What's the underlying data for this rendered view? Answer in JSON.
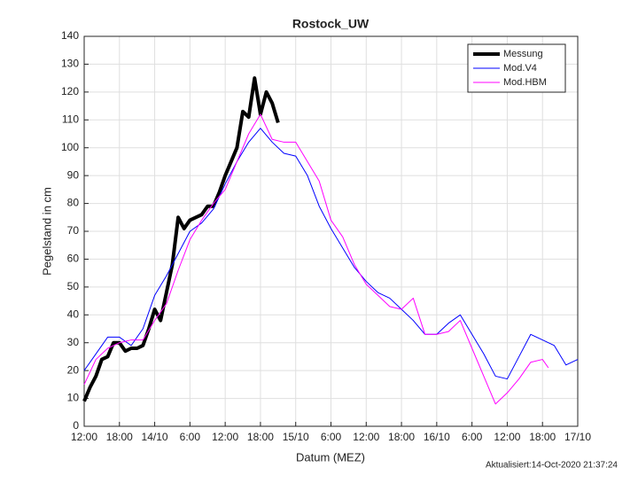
{
  "chart_data": {
    "type": "line",
    "title": "Rostock_UW",
    "xlabel": "Datum (MEZ)",
    "ylabel": "Pegelstand in cm",
    "footnote": "Aktualisiert:14-Oct-2020 21:37:24",
    "xlim": [
      0,
      84
    ],
    "ylim": [
      0,
      140
    ],
    "xticks": [
      {
        "value": 0,
        "label": "12:00"
      },
      {
        "value": 6,
        "label": "18:00"
      },
      {
        "value": 12,
        "label": "14/10"
      },
      {
        "value": 18,
        "label": "6:00"
      },
      {
        "value": 24,
        "label": "12:00"
      },
      {
        "value": 30,
        "label": "18:00"
      },
      {
        "value": 36,
        "label": "15/10"
      },
      {
        "value": 42,
        "label": "6:00"
      },
      {
        "value": 48,
        "label": "12:00"
      },
      {
        "value": 54,
        "label": "18:00"
      },
      {
        "value": 60,
        "label": "16/10"
      },
      {
        "value": 66,
        "label": "6:00"
      },
      {
        "value": 72,
        "label": "12:00"
      },
      {
        "value": 78,
        "label": "18:00"
      },
      {
        "value": 84,
        "label": "17/10"
      }
    ],
    "yticks": [
      0,
      10,
      20,
      30,
      40,
      50,
      60,
      70,
      80,
      90,
      100,
      110,
      120,
      130,
      140
    ],
    "grid": true,
    "legend": "top-right",
    "series": [
      {
        "name": "Messung",
        "color": "#000000",
        "width": 4,
        "x": [
          0,
          1,
          2,
          3,
          4,
          5,
          6,
          7,
          8,
          9,
          10,
          11,
          12,
          13,
          14,
          15,
          16,
          17,
          18,
          19,
          20,
          21,
          22,
          23,
          24,
          25,
          26,
          27,
          28,
          29,
          30,
          31,
          32,
          33
        ],
        "values": [
          9,
          14,
          18,
          24,
          25,
          30,
          30,
          27,
          28,
          28,
          29,
          35,
          42,
          38,
          48,
          58,
          75,
          71,
          74,
          75,
          76,
          79,
          79,
          84,
          90,
          95,
          100,
          113,
          111,
          125,
          112,
          120,
          116,
          109
        ]
      },
      {
        "name": "Mod.V4",
        "color": "#0000ff",
        "width": 1,
        "x": [
          0,
          2,
          4,
          6,
          8,
          10,
          12,
          14,
          16,
          18,
          20,
          22,
          24,
          26,
          28,
          30,
          32,
          34,
          36,
          38,
          40,
          42,
          44,
          46,
          48,
          50,
          52,
          54,
          56,
          58,
          60,
          62,
          64,
          66,
          68,
          70,
          72,
          74,
          76,
          78,
          80,
          82,
          84
        ],
        "values": [
          20,
          26,
          32,
          32,
          29,
          35,
          47,
          54,
          62,
          70,
          73,
          78,
          87,
          95,
          102,
          107,
          102,
          98,
          97,
          90,
          79,
          71,
          64,
          57,
          52,
          48,
          46,
          42,
          38,
          33,
          33,
          37,
          40,
          33,
          26,
          18,
          17,
          25,
          33,
          31,
          29,
          22,
          24
        ]
      },
      {
        "name": "Mod.HBM",
        "color": "#ff00ff",
        "width": 1,
        "x": [
          0,
          2,
          4,
          6,
          8,
          10,
          12,
          14,
          16,
          18,
          20,
          22,
          24,
          26,
          28,
          30,
          32,
          34,
          36,
          38,
          40,
          42,
          44,
          46,
          48,
          50,
          52,
          54,
          56,
          58,
          60,
          62,
          64,
          66,
          68,
          70,
          72,
          74,
          76,
          78,
          79
        ],
        "values": [
          15,
          24,
          28,
          30,
          31,
          31,
          38,
          44,
          56,
          67,
          74,
          80,
          85,
          95,
          105,
          112,
          103,
          102,
          102,
          95,
          88,
          74,
          68,
          58,
          51,
          47,
          43,
          42,
          46,
          33,
          33,
          34,
          38,
          28,
          18,
          8,
          12,
          17,
          23,
          24,
          21
        ]
      }
    ]
  }
}
